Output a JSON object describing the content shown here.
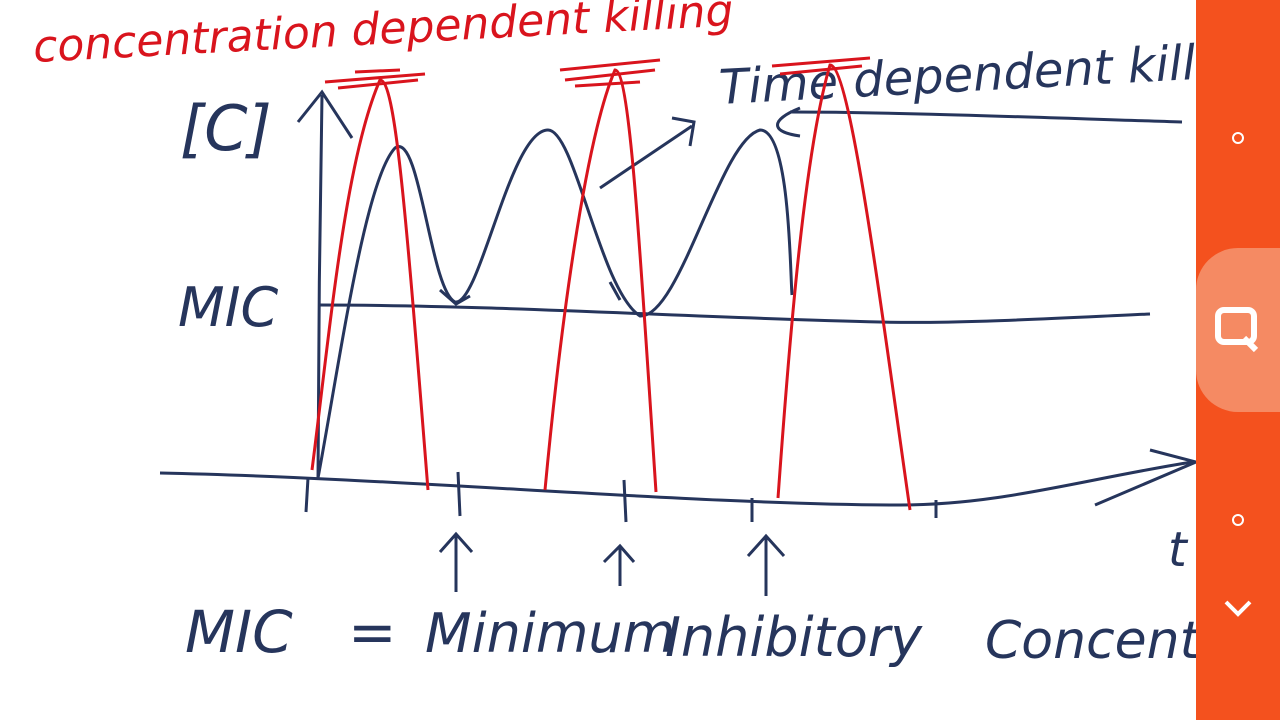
{
  "board": {
    "title_red": "concentration dependent killing",
    "title_black": "Time dependent killing",
    "y_axis_label": "[C]",
    "mic_label": "MIC",
    "x_axis_label": "t",
    "definition": {
      "abbr": "MIC",
      "equals": "=",
      "word1": "Minimum",
      "word2": "Inhibitory",
      "word3": "Concentration"
    }
  },
  "sidebar": {
    "icons": [
      "circle-dot-icon",
      "search-icon",
      "circle-dot-icon",
      "chevron-down-icon"
    ]
  },
  "colors": {
    "ink_blue": "#26355c",
    "ink_red": "#d9141d",
    "sidebar": "#f4511e",
    "sidebar_highlight": "#f58a63"
  }
}
